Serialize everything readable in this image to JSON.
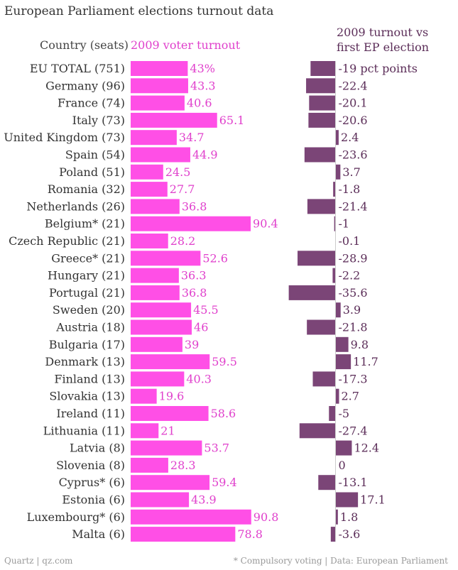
{
  "title": "European Parliament elections turnout data",
  "headers": {
    "country": "Country (seats)",
    "turnout": "2009 voter turnout",
    "change_line1": "2009 turnout vs",
    "change_line2": "first EP election"
  },
  "footer": {
    "left": "Quartz | qz.com",
    "right": "* Compulsory voting | Data: European Parliament"
  },
  "colors": {
    "turnout": "#ff4fe6",
    "turnout_text": "#e040cc",
    "change": "#7b4577",
    "change_text": "#5b2d58",
    "label_text": "#333333"
  },
  "chart_data": [
    {
      "type": "bar",
      "title": "2009 voter turnout",
      "categories": [
        "EU TOTAL (751)",
        "Germany (96)",
        "France (74)",
        "Italy (73)",
        "United Kingdom (73)",
        "Spain (54)",
        "Poland (51)",
        "Romania (32)",
        "Netherlands (26)",
        "Belgium* (21)",
        "Czech Republic (21)",
        "Greece* (21)",
        "Hungary (21)",
        "Portugal (21)",
        "Sweden (20)",
        "Austria (18)",
        "Bulgaria (17)",
        "Denmark (13)",
        "Finland (13)",
        "Slovakia (13)",
        "Ireland (11)",
        "Lithuania (11)",
        "Latvia (8)",
        "Slovenia (8)",
        "Cyprus* (6)",
        "Estonia (6)",
        "Luxembourg* (6)",
        "Malta (6)"
      ],
      "values": [
        43,
        43.3,
        40.6,
        65.1,
        34.7,
        44.9,
        24.5,
        27.7,
        36.8,
        90.4,
        28.2,
        52.6,
        36.3,
        36.8,
        45.5,
        46,
        39,
        59.5,
        40.3,
        19.6,
        58.6,
        21,
        53.7,
        28.3,
        59.4,
        43.9,
        90.8,
        78.8
      ],
      "value_labels": [
        "43%",
        "43.3",
        "40.6",
        "65.1",
        "34.7",
        "44.9",
        "24.5",
        "27.7",
        "36.8",
        "90.4",
        "28.2",
        "52.6",
        "36.3",
        "36.8",
        "45.5",
        "46",
        "39",
        "59.5",
        "40.3",
        "19.6",
        "58.6",
        "21",
        "53.7",
        "28.3",
        "59.4",
        "43.9",
        "90.8",
        "78.8"
      ],
      "orientation": "horizontal",
      "xlim": [
        0,
        100
      ]
    },
    {
      "type": "bar",
      "title": "2009 turnout vs first EP election",
      "categories": [
        "EU TOTAL (751)",
        "Germany (96)",
        "France (74)",
        "Italy (73)",
        "United Kingdom (73)",
        "Spain (54)",
        "Poland (51)",
        "Romania (32)",
        "Netherlands (26)",
        "Belgium* (21)",
        "Czech Republic (21)",
        "Greece* (21)",
        "Hungary (21)",
        "Portugal (21)",
        "Sweden (20)",
        "Austria (18)",
        "Bulgaria (17)",
        "Denmark (13)",
        "Finland (13)",
        "Slovakia (13)",
        "Ireland (11)",
        "Lithuania (11)",
        "Latvia (8)",
        "Slovenia (8)",
        "Cyprus* (6)",
        "Estonia (6)",
        "Luxembourg* (6)",
        "Malta (6)"
      ],
      "values": [
        -19,
        -22.4,
        -20.1,
        -20.6,
        2.4,
        -23.6,
        3.7,
        -1.8,
        -21.4,
        -1,
        -0.1,
        -28.9,
        -2.2,
        -35.6,
        3.9,
        -21.8,
        9.8,
        11.7,
        -17.3,
        2.7,
        -5,
        -27.4,
        12.4,
        0,
        -13.1,
        17.1,
        1.8,
        -3.6
      ],
      "value_labels": [
        "-19 pct points",
        "-22.4",
        "-20.1",
        "-20.6",
        "2.4",
        "-23.6",
        "3.7",
        "-1.8",
        "-21.4",
        "-1",
        "-0.1",
        "-28.9",
        "-2.2",
        "-35.6",
        "3.9",
        "-21.8",
        "9.8",
        "11.7",
        "-17.3",
        "2.7",
        "-5",
        "-27.4",
        "12.4",
        "0",
        "-13.1",
        "17.1",
        "1.8",
        "-3.6"
      ],
      "orientation": "horizontal"
    }
  ]
}
